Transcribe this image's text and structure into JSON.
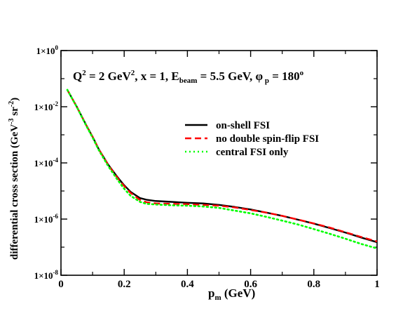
{
  "chart_data": {
    "type": "line",
    "title_parts": {
      "q2": "Q",
      "q2_sup": "2",
      "q2_val": " = 2 GeV",
      "q2_unit_sup": "2",
      "x_part": ", x = 1, E",
      "ebeam_sub": "beam",
      "ebeam_val": " = 5.5 GeV, ",
      "phi": "φ",
      "phi_sub": " p",
      "phi_val": " = 180",
      "phi_deg_sup": "o"
    },
    "xlabel": {
      "main": "p",
      "sub": "m",
      "rest": " (GeV)"
    },
    "ylabel": {
      "main": "differential cross section (GeV",
      "sup1": "-3",
      "mid": " sr",
      "sup2": "-2",
      "end": ")"
    },
    "x_range": [
      0,
      1
    ],
    "y_range_log10": [
      -8,
      0
    ],
    "y_log": true,
    "x_ticks": [
      {
        "value": 0,
        "label": "0"
      },
      {
        "value": 0.2,
        "label": "0.2"
      },
      {
        "value": 0.4,
        "label": "0.4"
      },
      {
        "value": 0.6,
        "label": "0.6"
      },
      {
        "value": 0.8,
        "label": "0.8"
      },
      {
        "value": 1,
        "label": "1"
      }
    ],
    "y_ticks": [
      {
        "exp": 0,
        "base": "1×10",
        "sup": "0"
      },
      {
        "exp": -2,
        "base": "1×10",
        "sup": "-2"
      },
      {
        "exp": -4,
        "base": "1×10",
        "sup": "-4"
      },
      {
        "exp": -6,
        "base": "1×10",
        "sup": "-6"
      },
      {
        "exp": -8,
        "base": "1×10",
        "sup": "-8"
      }
    ],
    "legend_position": "upper-right",
    "series": [
      {
        "name": "on-shell FSI",
        "color": "#000000",
        "dash": "solid",
        "x": [
          0.02,
          0.05,
          0.08,
          0.1,
          0.12,
          0.15,
          0.18,
          0.2,
          0.22,
          0.25,
          0.27,
          0.3,
          0.35,
          0.4,
          0.45,
          0.5,
          0.55,
          0.6,
          0.65,
          0.7,
          0.75,
          0.8,
          0.85,
          0.9,
          0.95,
          1.0
        ],
        "y": [
          0.04,
          0.01,
          0.0022,
          0.00085,
          0.0003,
          8.5e-05,
          3e-05,
          1.6e-05,
          9.4e-06,
          5.6e-06,
          4.9e-06,
          4.4e-06,
          4.1e-06,
          3.8e-06,
          3.6e-06,
          3.2e-06,
          2.7e-06,
          2.2e-06,
          1.7e-06,
          1.3e-06,
          9.5e-07,
          6.9e-07,
          4.8e-07,
          3.3e-07,
          2.2e-07,
          1.5e-07
        ]
      },
      {
        "name": "no double spin-flip FSI",
        "color": "#ff0000",
        "dash": "dashed",
        "x": [
          0.02,
          0.05,
          0.08,
          0.1,
          0.12,
          0.15,
          0.18,
          0.2,
          0.22,
          0.25,
          0.27,
          0.3,
          0.35,
          0.4,
          0.45,
          0.5,
          0.55,
          0.6,
          0.65,
          0.7,
          0.75,
          0.8,
          0.85,
          0.9,
          0.95,
          1.0
        ],
        "y": [
          0.04,
          0.01,
          0.0022,
          0.00085,
          0.0003,
          8.3e-05,
          2.8e-05,
          1.5e-05,
          8.6e-06,
          4.8e-06,
          4e-06,
          3.6e-06,
          3.5e-06,
          3.4e-06,
          3.2e-06,
          3e-06,
          2.6e-06,
          2.1e-06,
          1.7e-06,
          1.3e-06,
          9.6e-07,
          7e-07,
          5e-07,
          3.4e-07,
          2.3e-07,
          1.6e-07
        ]
      },
      {
        "name": "central FSI only",
        "color": "#00ff00",
        "dash": "dotted",
        "x": [
          0.02,
          0.05,
          0.08,
          0.1,
          0.12,
          0.15,
          0.18,
          0.2,
          0.22,
          0.25,
          0.27,
          0.3,
          0.35,
          0.4,
          0.45,
          0.5,
          0.55,
          0.6,
          0.65,
          0.7,
          0.75,
          0.8,
          0.85,
          0.9,
          0.95,
          1.0
        ],
        "y": [
          0.04,
          0.0098,
          0.0021,
          0.0008,
          0.00028,
          7.5e-05,
          2.4e-05,
          1.2e-05,
          6.8e-06,
          4.1e-06,
          3.5e-06,
          3.3e-06,
          3.1e-06,
          3e-06,
          2.8e-06,
          2.5e-06,
          2e-06,
          1.6e-06,
          1.2e-06,
          8.8e-07,
          6.4e-07,
          4.4e-07,
          3e-07,
          2e-07,
          1.3e-07,
          9e-08
        ]
      }
    ]
  }
}
